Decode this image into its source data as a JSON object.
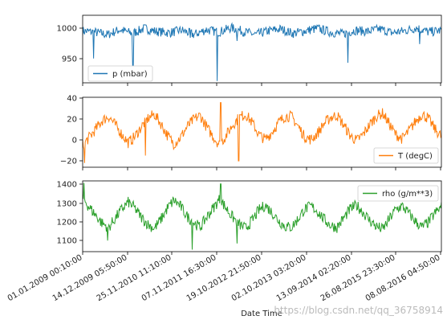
{
  "chart_data": [
    {
      "type": "line",
      "series": [
        {
          "name": "p (mbar)",
          "color": "#1f77b4"
        }
      ],
      "ylim": [
        913,
        1021
      ],
      "yticks": [
        "1000",
        "950"
      ],
      "legend_position": "lower-left",
      "envelope": [
        996,
        994,
        990,
        998,
        992,
        1000,
        995,
        993,
        997,
        990,
        998,
        994,
        1001,
        995,
        990,
        996,
        999,
        992,
        996,
        1000,
        994,
        991,
        997,
        995,
        999,
        993,
        996,
        1001,
        994,
        997
      ],
      "spikes": [
        [
          0.03,
          952
        ],
        [
          0.14,
          940
        ],
        [
          0.3,
          985
        ],
        [
          0.375,
          916
        ],
        [
          0.43,
          980
        ],
        [
          0.74,
          945
        ],
        [
          0.94,
          975
        ]
      ]
    },
    {
      "type": "line",
      "series": [
        {
          "name": "T (degC)",
          "color": "#ff7f0e"
        }
      ],
      "ylim": [
        -26,
        40
      ],
      "yticks": [
        "40",
        "20",
        "0",
        "−20"
      ],
      "legend_position": "lower-right",
      "envelope": [
        -5,
        2,
        10,
        18,
        22,
        14,
        5,
        -3,
        3,
        12,
        20,
        24,
        15,
        4,
        -4,
        2,
        12,
        19,
        23,
        12,
        3,
        -5,
        4,
        14,
        21,
        24,
        16,
        5,
        0,
        7,
        16,
        22,
        22,
        13,
        3,
        0,
        6,
        15,
        21,
        23,
        14,
        4,
        -1,
        5,
        14,
        22,
        25,
        15,
        5,
        1,
        8,
        17,
        24,
        20,
        10,
        3
      ],
      "spikes": [
        [
          0.005,
          -22
        ],
        [
          0.175,
          -15
        ],
        [
          0.385,
          35
        ],
        [
          0.435,
          -20
        ]
      ]
    },
    {
      "type": "line",
      "series": [
        {
          "name": "rho (g/m**3)",
          "color": "#2ca02c"
        }
      ],
      "ylim": [
        1055,
        1405
      ],
      "yticks": [
        "1400",
        "1300",
        "1200",
        "1100"
      ],
      "legend_position": "upper-right",
      "envelope": [
        1320,
        1275,
        1235,
        1195,
        1175,
        1220,
        1265,
        1300,
        1270,
        1225,
        1190,
        1170,
        1215,
        1270,
        1310,
        1280,
        1230,
        1200,
        1175,
        1225,
        1270,
        1315,
        1270,
        1225,
        1190,
        1170,
        1210,
        1260,
        1285,
        1250,
        1210,
        1180,
        1175,
        1215,
        1265,
        1280,
        1255,
        1215,
        1185,
        1175,
        1220,
        1265,
        1285,
        1250,
        1210,
        1180,
        1165,
        1215,
        1265,
        1280,
        1245,
        1205,
        1175,
        1200,
        1245,
        1275
      ],
      "spikes": [
        [
          0.003,
          1395
        ],
        [
          0.07,
          1110
        ],
        [
          0.305,
          1065
        ],
        [
          0.385,
          1390
        ],
        [
          0.43,
          1095
        ]
      ]
    }
  ],
  "xaxis": {
    "title": "Date Time",
    "ticks": [
      "01.01.2009 00:10:00",
      "14.12.2009 05:50:00",
      "25.11.2010 11:10:00",
      "07.11.2011 16:30:00",
      "19.10.2012 21:50:00",
      "02.10.2013 03:20:00",
      "13.09.2014 02:20:00",
      "26.08.2015 23:30:00",
      "08.08.2016 04:50:00"
    ]
  },
  "watermark": "https://blog.csdn.net/qq_36758914"
}
